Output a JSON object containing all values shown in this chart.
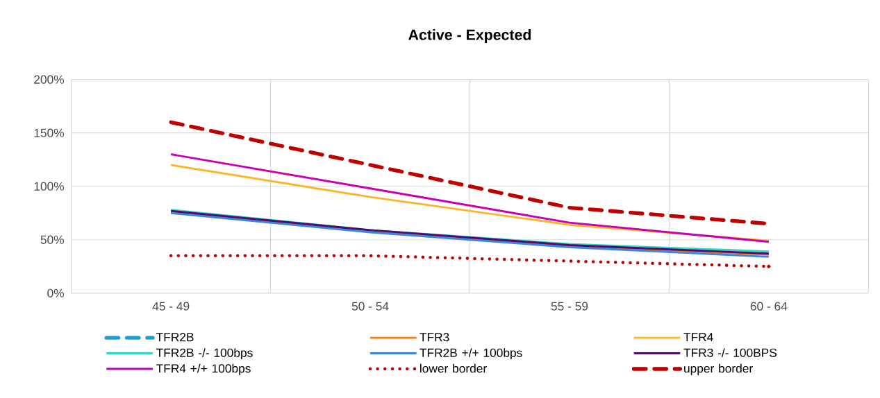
{
  "chart_data": {
    "type": "line",
    "title": "Active - Expected",
    "categories": [
      "45 - 49",
      "50 - 54",
      "55 - 59",
      "60 - 64"
    ],
    "series": [
      {
        "name": "TFR2B",
        "color": "#1a9fd6",
        "values": [
          null,
          null,
          null,
          null
        ],
        "line_style": "dashed"
      },
      {
        "name": "TFR3",
        "color": "#f07a14",
        "values": [
          76,
          58,
          44,
          36
        ],
        "line_style": "solid"
      },
      {
        "name": "TFR4",
        "color": "#fbb52a",
        "values": [
          120,
          90,
          64,
          49
        ],
        "line_style": "solid"
      },
      {
        "name": "TFR2B -/- 100bps",
        "color": "#33d6c0",
        "values": [
          78,
          59,
          46,
          39
        ],
        "line_style": "solid"
      },
      {
        "name": "TFR2B +/+ 100bps",
        "color": "#3a86e8",
        "values": [
          75,
          57,
          43,
          34
        ],
        "line_style": "solid"
      },
      {
        "name": "TFR3 -/- 100BPS",
        "color": "#4b0d6e",
        "values": [
          77,
          59,
          45,
          37
        ],
        "line_style": "solid"
      },
      {
        "name": "TFR4 +/+ 100bps",
        "color": "#c800b4",
        "values": [
          130,
          98,
          66,
          48
        ],
        "line_style": "solid"
      },
      {
        "name": "lower border",
        "color": "#c00000",
        "values": [
          35,
          35,
          30,
          25
        ],
        "line_style": "dotted"
      },
      {
        "name": "upper border",
        "color": "#c00000",
        "values": [
          160,
          120,
          80,
          65
        ],
        "line_style": "dashed"
      }
    ],
    "ylim": [
      0,
      200
    ],
    "yticks": [
      {
        "value": 0,
        "label": "0%"
      },
      {
        "value": 50,
        "label": "50%"
      },
      {
        "value": 100,
        "label": "100%"
      },
      {
        "value": 150,
        "label": "150%"
      },
      {
        "value": 200,
        "label": "200%"
      }
    ],
    "grid": true,
    "legend": "bottom",
    "marker": "none"
  }
}
